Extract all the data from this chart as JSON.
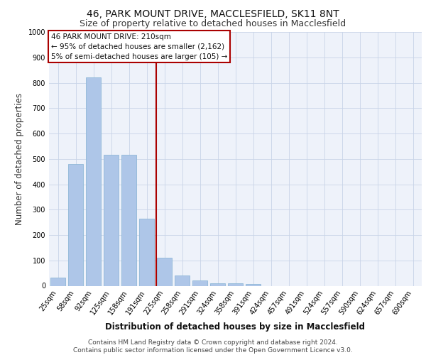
{
  "title1": "46, PARK MOUNT DRIVE, MACCLESFIELD, SK11 8NT",
  "title2": "Size of property relative to detached houses in Macclesfield",
  "xlabel": "Distribution of detached houses by size in Macclesfield",
  "ylabel": "Number of detached properties",
  "bar_labels": [
    "25sqm",
    "58sqm",
    "92sqm",
    "125sqm",
    "158sqm",
    "191sqm",
    "225sqm",
    "258sqm",
    "291sqm",
    "324sqm",
    "358sqm",
    "391sqm",
    "424sqm",
    "457sqm",
    "491sqm",
    "524sqm",
    "557sqm",
    "590sqm",
    "624sqm",
    "657sqm",
    "690sqm"
  ],
  "bar_values": [
    33,
    480,
    820,
    515,
    515,
    265,
    110,
    40,
    22,
    10,
    10,
    8,
    0,
    0,
    0,
    0,
    0,
    0,
    0,
    0,
    0
  ],
  "bar_color": "#aec6e8",
  "bar_edge_color": "#8fb8d8",
  "grid_color": "#c8d4e8",
  "background_color": "#eef2fa",
  "ylim": [
    0,
    1000
  ],
  "yticks": [
    0,
    100,
    200,
    300,
    400,
    500,
    600,
    700,
    800,
    900,
    1000
  ],
  "footer_text": "Contains HM Land Registry data © Crown copyright and database right 2024.\nContains public sector information licensed under the Open Government Licence v3.0.",
  "annotation_box_text": "46 PARK MOUNT DRIVE: 210sqm\n← 95% of detached houses are smaller (2,162)\n5% of semi-detached houses are larger (105) →",
  "red_line_color": "#aa0000",
  "annotation_box_edge_color": "#aa0000",
  "title1_fontsize": 10,
  "title2_fontsize": 9,
  "xlabel_fontsize": 8.5,
  "ylabel_fontsize": 8.5,
  "tick_fontsize": 7,
  "footer_fontsize": 6.5,
  "ann_fontsize": 7.5
}
